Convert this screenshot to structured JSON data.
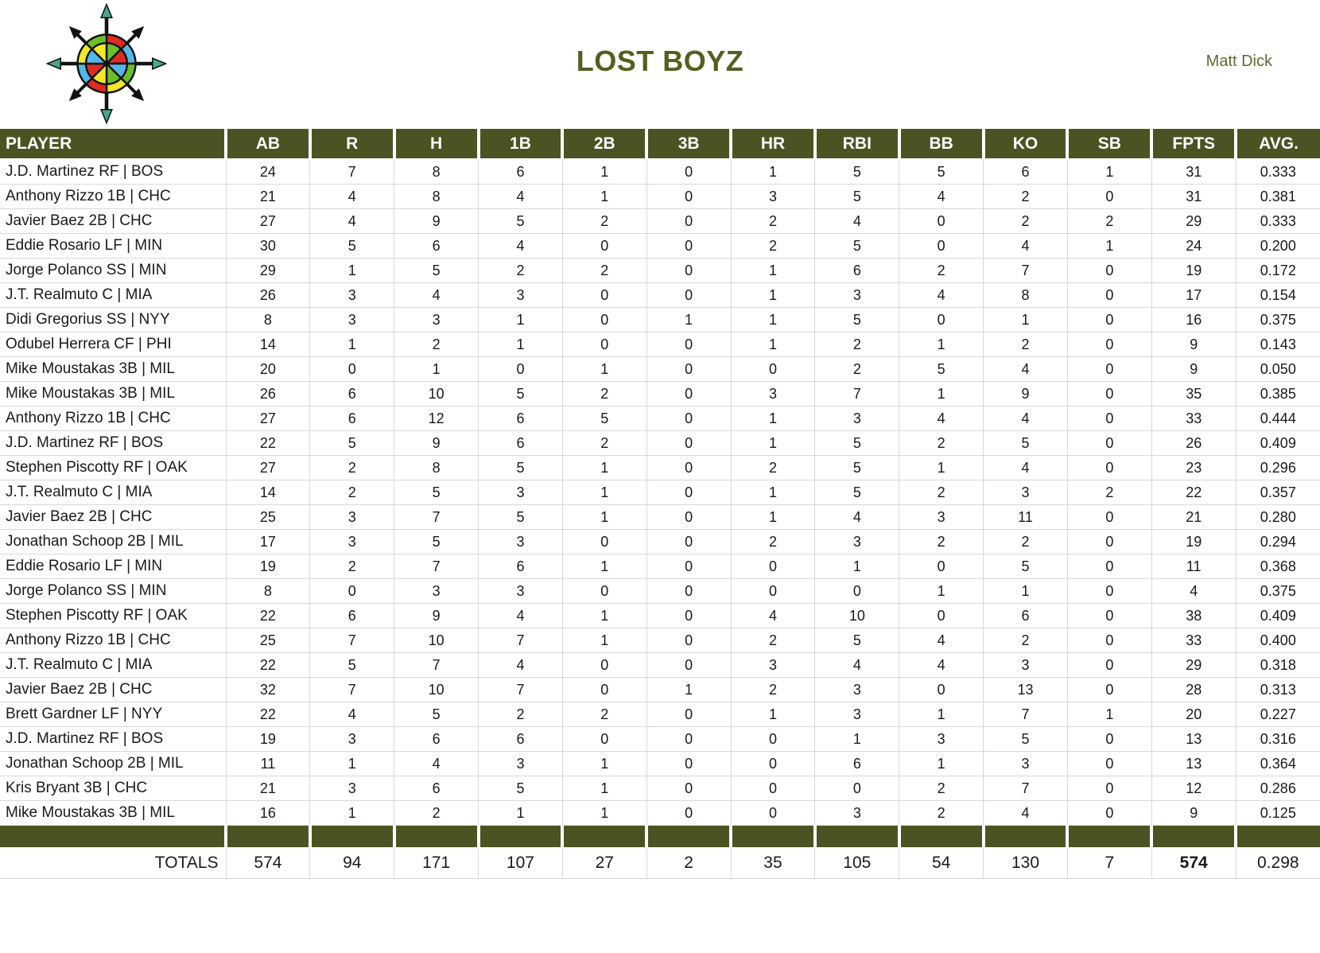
{
  "app": {
    "title": "LOST BOYZ",
    "owner": "Matt Dick",
    "logo": "compass-rose-icon"
  },
  "colors": {
    "header_green": "#4a5422",
    "title_green": "#51611e",
    "owner_green": "#5d6b30",
    "gridline_gray": "#d9d9d9",
    "logo_red": "#e02b20",
    "logo_blue": "#53b7e8",
    "logo_green": "#6abf27",
    "logo_yellow": "#f2e727",
    "logo_teal": "#4aa58e"
  },
  "table": {
    "columns": [
      "PLAYER",
      "AB",
      "R",
      "H",
      "1B",
      "2B",
      "3B",
      "HR",
      "RBI",
      "BB",
      "KO",
      "SB",
      "FPTS",
      "AVG."
    ],
    "rows": [
      [
        "J.D. Martinez RF | BOS",
        24,
        7,
        8,
        6,
        1,
        0,
        1,
        5,
        5,
        6,
        1,
        31,
        "0.333"
      ],
      [
        "Anthony Rizzo 1B | CHC",
        21,
        4,
        8,
        4,
        1,
        0,
        3,
        5,
        4,
        2,
        0,
        31,
        "0.381"
      ],
      [
        "Javier Baez 2B | CHC",
        27,
        4,
        9,
        5,
        2,
        0,
        2,
        4,
        0,
        2,
        2,
        29,
        "0.333"
      ],
      [
        "Eddie Rosario LF | MIN",
        30,
        5,
        6,
        4,
        0,
        0,
        2,
        5,
        0,
        4,
        1,
        24,
        "0.200"
      ],
      [
        "Jorge Polanco SS | MIN",
        29,
        1,
        5,
        2,
        2,
        0,
        1,
        6,
        2,
        7,
        0,
        19,
        "0.172"
      ],
      [
        "J.T. Realmuto C | MIA",
        26,
        3,
        4,
        3,
        0,
        0,
        1,
        3,
        4,
        8,
        0,
        17,
        "0.154"
      ],
      [
        "Didi Gregorius SS | NYY",
        8,
        3,
        3,
        1,
        0,
        1,
        1,
        5,
        0,
        1,
        0,
        16,
        "0.375"
      ],
      [
        "Odubel Herrera CF | PHI",
        14,
        1,
        2,
        1,
        0,
        0,
        1,
        2,
        1,
        2,
        0,
        9,
        "0.143"
      ],
      [
        "Mike Moustakas 3B | MIL",
        20,
        0,
        1,
        0,
        1,
        0,
        0,
        2,
        5,
        4,
        0,
        9,
        "0.050"
      ],
      [
        "Mike Moustakas 3B | MIL",
        26,
        6,
        10,
        5,
        2,
        0,
        3,
        7,
        1,
        9,
        0,
        35,
        "0.385"
      ],
      [
        "Anthony Rizzo 1B | CHC",
        27,
        6,
        12,
        6,
        5,
        0,
        1,
        3,
        4,
        4,
        0,
        33,
        "0.444"
      ],
      [
        "J.D. Martinez RF | BOS",
        22,
        5,
        9,
        6,
        2,
        0,
        1,
        5,
        2,
        5,
        0,
        26,
        "0.409"
      ],
      [
        "Stephen Piscotty RF | OAK",
        27,
        2,
        8,
        5,
        1,
        0,
        2,
        5,
        1,
        4,
        0,
        23,
        "0.296"
      ],
      [
        "J.T. Realmuto C | MIA",
        14,
        2,
        5,
        3,
        1,
        0,
        1,
        5,
        2,
        3,
        2,
        22,
        "0.357"
      ],
      [
        "Javier Baez 2B | CHC",
        25,
        3,
        7,
        5,
        1,
        0,
        1,
        4,
        3,
        11,
        0,
        21,
        "0.280"
      ],
      [
        "Jonathan Schoop 2B | MIL",
        17,
        3,
        5,
        3,
        0,
        0,
        2,
        3,
        2,
        2,
        0,
        19,
        "0.294"
      ],
      [
        "Eddie Rosario LF | MIN",
        19,
        2,
        7,
        6,
        1,
        0,
        0,
        1,
        0,
        5,
        0,
        11,
        "0.368"
      ],
      [
        "Jorge Polanco SS | MIN",
        8,
        0,
        3,
        3,
        0,
        0,
        0,
        0,
        1,
        1,
        0,
        4,
        "0.375"
      ],
      [
        "Stephen Piscotty RF | OAK",
        22,
        6,
        9,
        4,
        1,
        0,
        4,
        10,
        0,
        6,
        0,
        38,
        "0.409"
      ],
      [
        "Anthony Rizzo 1B | CHC",
        25,
        7,
        10,
        7,
        1,
        0,
        2,
        5,
        4,
        2,
        0,
        33,
        "0.400"
      ],
      [
        "J.T. Realmuto C | MIA",
        22,
        5,
        7,
        4,
        0,
        0,
        3,
        4,
        4,
        3,
        0,
        29,
        "0.318"
      ],
      [
        "Javier Baez 2B | CHC",
        32,
        7,
        10,
        7,
        0,
        1,
        2,
        3,
        0,
        13,
        0,
        28,
        "0.313"
      ],
      [
        "Brett Gardner LF | NYY",
        22,
        4,
        5,
        2,
        2,
        0,
        1,
        3,
        1,
        7,
        1,
        20,
        "0.227"
      ],
      [
        "J.D. Martinez RF | BOS",
        19,
        3,
        6,
        6,
        0,
        0,
        0,
        1,
        3,
        5,
        0,
        13,
        "0.316"
      ],
      [
        "Jonathan Schoop 2B | MIL",
        11,
        1,
        4,
        3,
        1,
        0,
        0,
        6,
        1,
        3,
        0,
        13,
        "0.364"
      ],
      [
        "Kris Bryant 3B | CHC",
        21,
        3,
        6,
        5,
        1,
        0,
        0,
        0,
        2,
        7,
        0,
        12,
        "0.286"
      ],
      [
        "Mike Moustakas 3B | MIL",
        16,
        1,
        2,
        1,
        1,
        0,
        0,
        3,
        2,
        4,
        0,
        9,
        "0.125"
      ]
    ],
    "totals_label": "TOTALS",
    "totals": [
      574,
      94,
      171,
      107,
      27,
      2,
      35,
      105,
      54,
      130,
      7,
      574,
      "0.298"
    ],
    "totals_bold_column": "FPTS"
  }
}
